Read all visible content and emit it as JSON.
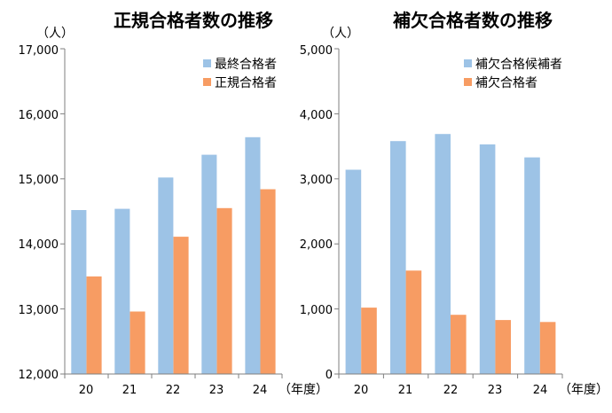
{
  "colors": {
    "blue": "#9dc3e6",
    "orange": "#f79c63",
    "axis": "#7f7f7f",
    "text": "#000000"
  },
  "chart_data": [
    {
      "type": "bar",
      "title": "正規合格者数の推移",
      "unit_label": "（人）",
      "x_unit_label": "（年度）",
      "categories": [
        "20",
        "21",
        "22",
        "23",
        "24"
      ],
      "ylim": [
        12000,
        17000
      ],
      "yticks": [
        "12,000",
        "13,000",
        "14,000",
        "15,000",
        "16,000",
        "17,000"
      ],
      "legend_position": "top-right",
      "series": [
        {
          "name": "最終合格者",
          "color": "#9dc3e6",
          "values": [
            14520,
            14540,
            15020,
            15370,
            15640
          ]
        },
        {
          "name": "正規合格者",
          "color": "#f79c63",
          "values": [
            13500,
            12960,
            14110,
            14550,
            14840
          ]
        }
      ]
    },
    {
      "type": "bar",
      "title": "補欠合格者数の推移",
      "unit_label": "（人）",
      "x_unit_label": "（年度）",
      "categories": [
        "20",
        "21",
        "22",
        "23",
        "24"
      ],
      "ylim": [
        0,
        5000
      ],
      "yticks": [
        "0",
        "1,000",
        "2,000",
        "3,000",
        "4,000",
        "5,000"
      ],
      "legend_position": "top-right",
      "series": [
        {
          "name": "補欠合格候補者",
          "color": "#9dc3e6",
          "values": [
            3140,
            3580,
            3690,
            3530,
            3330
          ]
        },
        {
          "name": "補欠合格者",
          "color": "#f79c63",
          "values": [
            1020,
            1590,
            910,
            830,
            800
          ]
        }
      ]
    }
  ]
}
